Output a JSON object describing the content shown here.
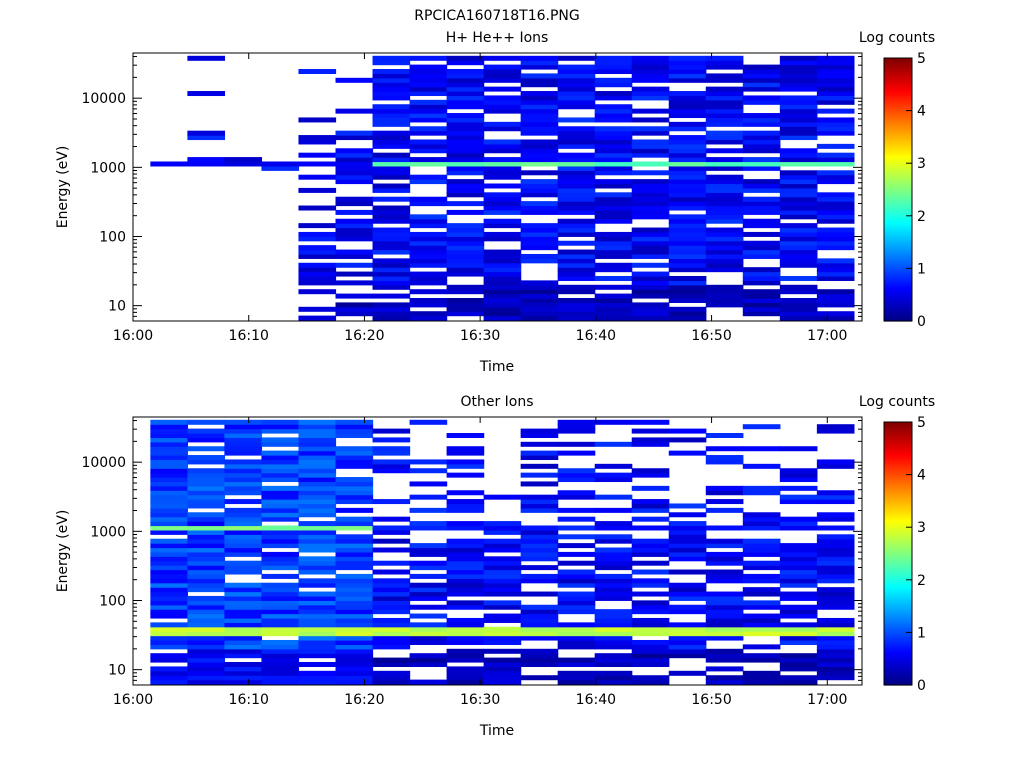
{
  "figure_title": "RPCICA160718T16.PNG",
  "colors": {
    "colormap": [
      "#000080",
      "#0000ff",
      "#0080ff",
      "#00ffff",
      "#80ff80",
      "#ffff00",
      "#ff8000",
      "#ff0000",
      "#800000"
    ],
    "background": "#ffffff",
    "axis": "#000000"
  },
  "chart_data": [
    {
      "type": "heatmap",
      "title": "H+ He++ Ions",
      "xlabel": "Time",
      "ylabel": "Energy (eV)",
      "xticks": [
        "16:00",
        "16:10",
        "16:20",
        "16:30",
        "16:40",
        "16:50",
        "17:00"
      ],
      "xlim_minutes": [
        0,
        63
      ],
      "yticks": [
        "10",
        "100",
        "1000",
        "10000"
      ],
      "ylim": [
        6,
        45000
      ],
      "yscale": "log",
      "colorbar": {
        "label": "Log counts",
        "ticks": [
          "0",
          "1",
          "2",
          "3",
          "4",
          "5"
        ],
        "range": [
          0,
          5
        ]
      },
      "time_bins_start_minutes": [
        1.5,
        4.7,
        7.9,
        11.1,
        14.3,
        17.5,
        20.7,
        23.9,
        27.1,
        30.3,
        33.5,
        36.7,
        39.9,
        43.1,
        46.3,
        49.5,
        52.7,
        55.9,
        59.1
      ],
      "bin_width_minutes": 3.2,
      "notable_bands": [
        {
          "energy_ev": 1150,
          "log_counts": 2.3,
          "time_range_minutes": [
            20.7,
            62.3
          ]
        },
        {
          "energy_ev": 1150,
          "log_counts": 0.6,
          "time_range_minutes": [
            1.5,
            20.7
          ]
        }
      ]
    },
    {
      "type": "heatmap",
      "title": "Other Ions",
      "xlabel": "Time",
      "ylabel": "Energy (eV)",
      "xticks": [
        "16:00",
        "16:10",
        "16:20",
        "16:30",
        "16:40",
        "16:50",
        "17:00"
      ],
      "xlim_minutes": [
        0,
        63
      ],
      "yticks": [
        "10",
        "100",
        "1000",
        "10000"
      ],
      "ylim": [
        6,
        45000
      ],
      "yscale": "log",
      "colorbar": {
        "label": "Log counts",
        "ticks": [
          "0",
          "1",
          "2",
          "3",
          "4",
          "5"
        ],
        "range": [
          0,
          5
        ]
      },
      "time_bins_start_minutes": [
        1.5,
        4.7,
        7.9,
        11.1,
        14.3,
        17.5,
        20.7,
        23.9,
        27.1,
        30.3,
        33.5,
        36.7,
        39.9,
        43.1,
        46.3,
        49.5,
        52.7,
        55.9,
        59.1
      ],
      "bin_width_minutes": 3.2,
      "notable_bands": [
        {
          "energy_ev": 1150,
          "log_counts": 2.5,
          "time_range_minutes": [
            1.5,
            20.7
          ]
        },
        {
          "energy_ev": 1150,
          "log_counts": 0.7,
          "time_range_minutes": [
            20.7,
            62.3
          ]
        },
        {
          "energy_ev": 35,
          "log_counts": 2.8,
          "time_range_minutes": [
            1.5,
            62.3
          ]
        }
      ]
    }
  ]
}
